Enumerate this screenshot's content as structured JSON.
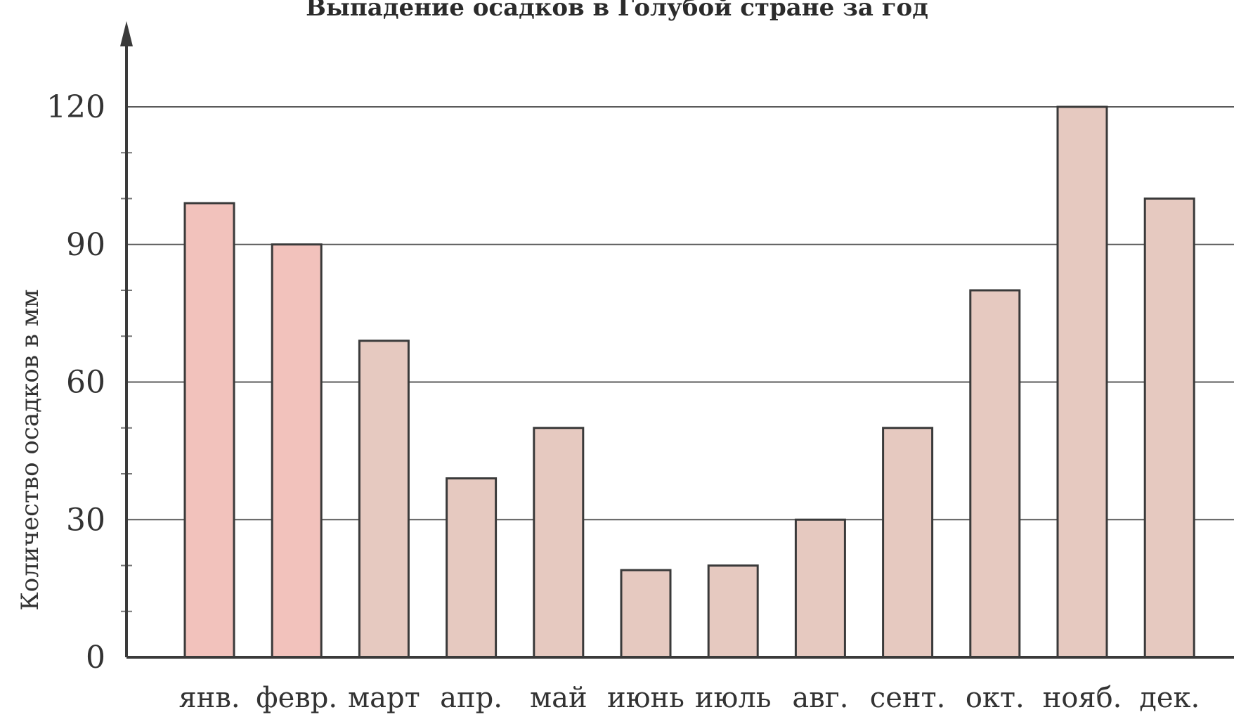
{
  "chart_data": {
    "type": "bar",
    "title": "Выпадение осадков в Голубой стране за год",
    "xlabel": "",
    "ylabel": "Количество осадков в мм",
    "categories": [
      "янв.",
      "февр.",
      "март",
      "апр.",
      "май",
      "июнь",
      "июль",
      "авг.",
      "сент.",
      "окт.",
      "нояб.",
      "дек."
    ],
    "values": [
      99,
      90,
      69,
      39,
      50,
      19,
      20,
      30,
      50,
      80,
      120,
      100
    ],
    "ylim": [
      0,
      120
    ],
    "yticks": [
      "0",
      "30",
      "60",
      "90",
      "120"
    ],
    "grid": true,
    "colors": {
      "highlight_bar": "#f2c2bc",
      "bar": "#e6c9c0"
    },
    "highlighted_categories": [
      "янв.",
      "февр."
    ]
  }
}
